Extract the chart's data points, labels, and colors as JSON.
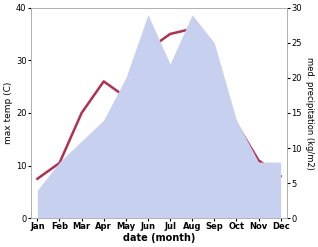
{
  "months": [
    "Jan",
    "Feb",
    "Mar",
    "Apr",
    "May",
    "Jun",
    "Jul",
    "Aug",
    "Sep",
    "Oct",
    "Nov",
    "Dec"
  ],
  "temperature": [
    7.5,
    10.5,
    20.0,
    26.0,
    23.0,
    32.0,
    35.0,
    36.0,
    27.0,
    18.0,
    11.0,
    8.0
  ],
  "precipitation": [
    4.0,
    8.0,
    11.0,
    14.0,
    20.0,
    29.0,
    22.0,
    29.0,
    25.0,
    14.0,
    8.0,
    8.0
  ],
  "temp_ylim": [
    0,
    40
  ],
  "precip_ylim": [
    0,
    30
  ],
  "temp_color": "#b03050",
  "precip_fill_color": "#c8d0f0",
  "xlabel": "date (month)",
  "ylabel_left": "max temp (C)",
  "ylabel_right": "med. precipitation (kg/m2)",
  "temp_yticks": [
    0,
    10,
    20,
    30,
    40
  ],
  "precip_yticks": [
    0,
    5,
    10,
    15,
    20,
    25,
    30
  ],
  "bg_color": "#ffffff",
  "linewidth": 1.8,
  "figsize": [
    3.18,
    2.47
  ],
  "dpi": 100
}
